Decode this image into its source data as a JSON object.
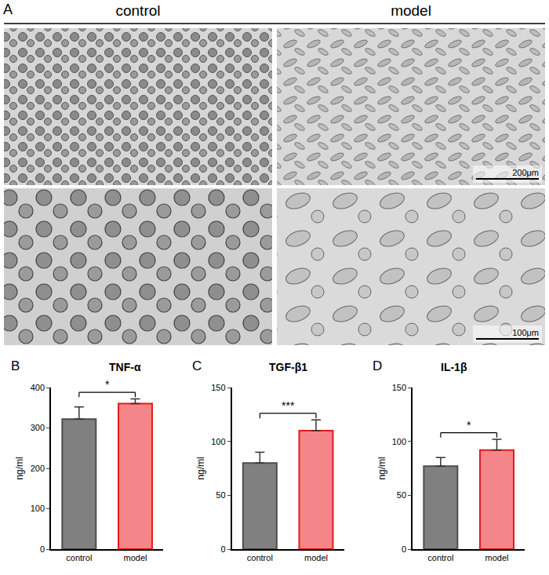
{
  "panel_a": {
    "panel": "A",
    "columns": [
      "control",
      "model"
    ],
    "scale_bars": [
      "200μm",
      "100μm"
    ]
  },
  "chart_data": [
    {
      "panel": "B",
      "type": "bar",
      "title": "TNF-α",
      "y_label": "ng/ml",
      "categories": [
        "control",
        "model"
      ],
      "values": [
        322,
        360
      ],
      "errors": [
        30,
        12
      ],
      "colors": [
        "#808080",
        "#f4868a"
      ],
      "ylim": [
        0,
        400
      ],
      "yticks": [
        0,
        100,
        200,
        300,
        400
      ],
      "annotations": [
        "*"
      ]
    },
    {
      "panel": "C",
      "type": "bar",
      "title": "TGF-β1",
      "y_label": "ng/ml",
      "categories": [
        "control",
        "model"
      ],
      "values": [
        80,
        110
      ],
      "errors": [
        10,
        10
      ],
      "colors": [
        "#808080",
        "#f4868a"
      ],
      "ylim": [
        0,
        150
      ],
      "yticks": [
        0,
        50,
        100,
        150
      ],
      "annotations": [
        "***"
      ]
    },
    {
      "panel": "D",
      "type": "bar",
      "title": "IL-1β",
      "y_label": "ng/ml",
      "categories": [
        "control",
        "model"
      ],
      "values": [
        77,
        92
      ],
      "errors": [
        8,
        10
      ],
      "colors": [
        "#808080",
        "#f4868a"
      ],
      "ylim": [
        0,
        150
      ],
      "yticks": [
        0,
        50,
        100,
        150
      ],
      "annotations": [
        "*"
      ]
    }
  ]
}
